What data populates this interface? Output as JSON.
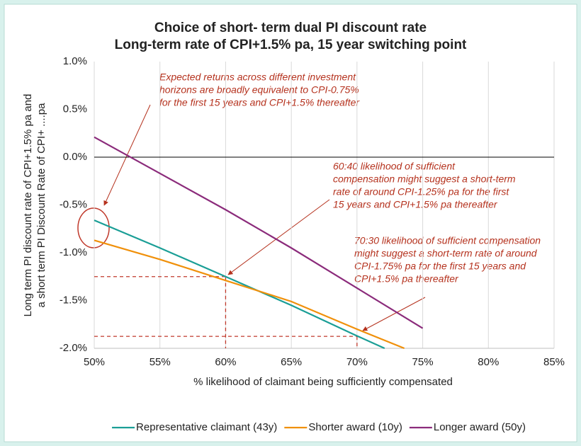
{
  "chart_data": {
    "type": "line",
    "title": [
      "Choice of short- term dual PI discount rate",
      "Long-term rate of CPI+1.5% pa, 15 year switching point"
    ],
    "x_label": "% likelihood of claimant being sufficiently compensated",
    "y_label": [
      "Long term PI discount rate of CPI+1.5% pa and",
      "a short term PI Discount Rate of CPI+ ....pa"
    ],
    "xlim": [
      50,
      85
    ],
    "xticks": [
      {
        "value": 50,
        "label": "50%"
      },
      {
        "value": 55,
        "label": "55%"
      },
      {
        "value": 60,
        "label": "60%"
      },
      {
        "value": 65,
        "label": "65%"
      },
      {
        "value": 70,
        "label": "70%"
      },
      {
        "value": 75,
        "label": "75%"
      },
      {
        "value": 80,
        "label": "80%"
      },
      {
        "value": 85,
        "label": "85%"
      }
    ],
    "ylim": [
      -2.0,
      1.0
    ],
    "yticks": [
      {
        "value": 1.0,
        "label": "1.0%"
      },
      {
        "value": 0.5,
        "label": "0.5%"
      },
      {
        "value": 0.0,
        "label": "0.0%"
      },
      {
        "value": -0.5,
        "label": "-0.5%"
      },
      {
        "value": -1.0,
        "label": "-1.0%"
      },
      {
        "value": -1.5,
        "label": "-1.5%"
      },
      {
        "value": -2.0,
        "label": "-2.0%"
      }
    ],
    "grid": "x",
    "legend": "bottom",
    "series": [
      {
        "name": "Representative claimant (43y)",
        "color": "#1a9e96",
        "x": [
          50,
          55,
          60,
          65,
          70,
          72.1
        ],
        "values": [
          -0.66,
          -0.95,
          -1.25,
          -1.55,
          -1.87,
          -2.0
        ]
      },
      {
        "name": "Shorter award (10y)",
        "color": "#f0900a",
        "x": [
          50,
          55,
          60,
          65,
          70,
          73.6
        ],
        "values": [
          -0.87,
          -1.07,
          -1.29,
          -1.51,
          -1.8,
          -2.0
        ]
      },
      {
        "name": "Longer award (50y)",
        "color": "#8b2b7b",
        "x": [
          50,
          55,
          60,
          65,
          70,
          75
        ],
        "values": [
          0.21,
          -0.17,
          -0.55,
          -0.95,
          -1.37,
          -1.79
        ]
      }
    ],
    "reference_points": [
      {
        "x": 60,
        "y": -1.25
      },
      {
        "x": 70,
        "y": -1.875
      }
    ],
    "annotations": [
      [
        "Expected returns across different investment",
        "horizons are broadly equivalent to CPI-0.75%",
        "for the first 15 years and CPI+1.5% thereafter"
      ],
      [
        "60:40 likelihood of sufficient",
        "compensation might suggest a short-term",
        "rate of around CPI-1.25% pa for the first",
        "15 years and CPI+1.5% pa thereafter"
      ],
      [
        "70:30 likelihood of sufficient compensation",
        "might suggest a short-term rate of around",
        "CPI-1.75% pa for the first 15 years and",
        "CPI+1.5% pa thereafter"
      ]
    ]
  }
}
